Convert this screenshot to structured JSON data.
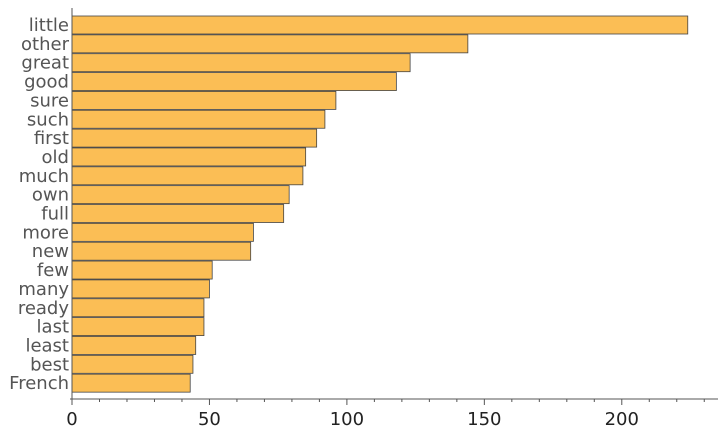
{
  "chart_data": {
    "type": "bar",
    "orientation": "horizontal",
    "categories": [
      "little",
      "other",
      "great",
      "good",
      "sure",
      "such",
      "first",
      "old",
      "much",
      "own",
      "full",
      "more",
      "new",
      "few",
      "many",
      "ready",
      "last",
      "least",
      "best",
      "French"
    ],
    "values": [
      224,
      144,
      123,
      118,
      96,
      92,
      89,
      85,
      84,
      79,
      77,
      66,
      65,
      51,
      50,
      48,
      48,
      45,
      44,
      43
    ],
    "xlim": [
      0,
      235
    ],
    "xticks": [
      0,
      50,
      100,
      150,
      200
    ],
    "xticks_minor_step": 10,
    "title": "",
    "xlabel": "",
    "ylabel": "",
    "grid": false,
    "legend": "none",
    "colors": {
      "bar": "#fbbe55",
      "bar_edge": "#444444",
      "axis": "#555555"
    }
  }
}
